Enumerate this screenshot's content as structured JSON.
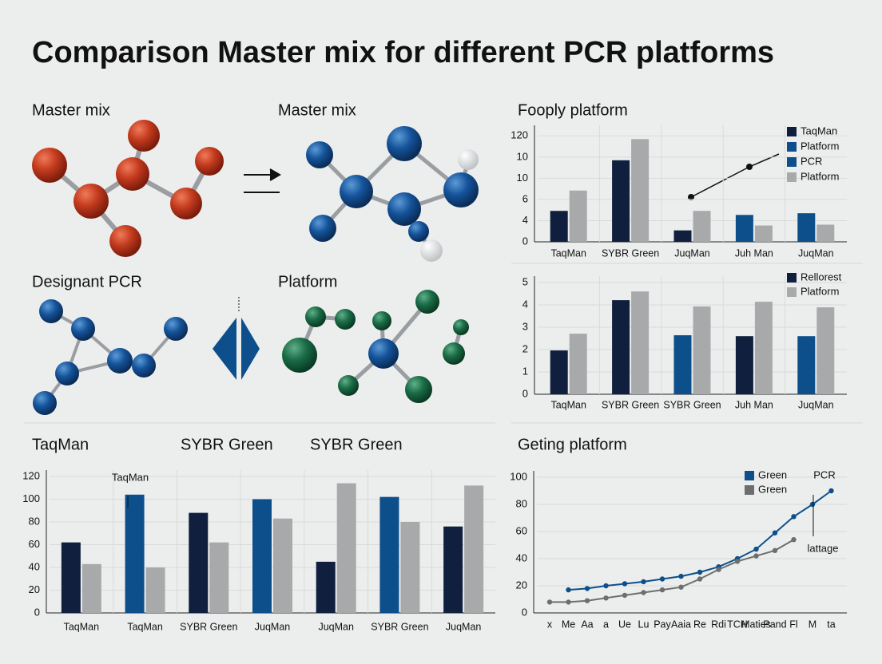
{
  "title": "Comparison  Master mix for different PCR platforms",
  "panel_labels": [
    "Master mix",
    "Master mix",
    "Designant PCR",
    "Platform",
    "TaqMan",
    "SYBR Green",
    "SYBR Green"
  ],
  "chart_data": [
    {
      "type": "bar",
      "title": "Fooply platform",
      "categories": [
        "TaqMan",
        "SYBR Green",
        "JuqMan",
        "Juh Man",
        "JuqMan"
      ],
      "series": [
        {
          "colors": [
            "#0f1f3d",
            "#0f1f3d",
            "#0f1f3d",
            "#0d4f8b",
            "#0d4f8b"
          ],
          "values": [
            1.46,
            3.85,
            0.54,
            1.27,
            1.35
          ]
        },
        {
          "color": "#a8a9ab",
          "values": [
            2.42,
            4.85,
            1.46,
            0.77,
            0.81
          ]
        }
      ],
      "legend": [
        {
          "name": "TaqMan",
          "color": "#0f1f3d"
        },
        {
          "name": "Platform",
          "color": "#0d4f8b"
        },
        {
          "name": "PCR",
          "color": "#0d4f8b"
        },
        {
          "name": "Platform",
          "color": "#a8a9ab"
        }
      ],
      "ylim": [
        0,
        5.2
      ],
      "yticks": [
        0,
        {
          "value": 1,
          "label": "4"
        },
        {
          "value": 2,
          "label": "6"
        },
        {
          "value": 3,
          "label": "10"
        },
        {
          "value": 4,
          "label": "10"
        },
        {
          "value": 5,
          "label": "120"
        }
      ],
      "grid": true
    },
    {
      "type": "bar",
      "categories": [
        "TaqMan",
        "SYBR Green",
        "SYBR Green",
        "Juh Man",
        "JuqMan"
      ],
      "series": [
        {
          "colors": [
            "#0f1f3d",
            "#0f1f3d",
            "#0d4f8b",
            "#0f1f3d",
            "#0d4f8b"
          ],
          "values": [
            1.96,
            4.21,
            2.64,
            2.6,
            2.6
          ]
        },
        {
          "color": "#a8a9ab",
          "values": [
            2.71,
            4.6,
            3.93,
            4.14,
            3.89
          ]
        }
      ],
      "legend": [
        {
          "name": "Rellorest",
          "color": "#0f1f3d"
        },
        {
          "name": "Platform",
          "color": "#a8a9ab"
        }
      ],
      "ylim": [
        0,
        5
      ],
      "yticks": [
        0,
        1,
        2,
        3,
        4,
        5
      ],
      "grid": true
    },
    {
      "type": "bar",
      "categories": [
        "TaqMan",
        "TaqMan",
        "SYBR Green",
        "JuqMan",
        "JuqMan",
        "SYBR Green",
        "JuqMan"
      ],
      "series": [
        {
          "colors": [
            "#0f1f3d",
            "#0d4f8b",
            "#0f1f3d",
            "#0d4f8b",
            "#0f1f3d",
            "#0d4f8b",
            "#0f1f3d"
          ],
          "values": [
            62,
            104,
            88,
            100,
            45,
            102,
            76
          ]
        },
        {
          "color": "#a8a9ab",
          "values": [
            43,
            40,
            62,
            83,
            114,
            80,
            112
          ]
        }
      ],
      "annotations": [
        "TaqMan"
      ],
      "ylim": [
        0,
        120
      ],
      "yticks": [
        0,
        20,
        40,
        60,
        80,
        100,
        120
      ],
      "grid": true
    },
    {
      "type": "line",
      "title": "Geting platform",
      "categories": [
        "x",
        "Me",
        "Aa",
        "a",
        "Ue",
        "Lu",
        "Pay",
        "Aaia",
        "Re",
        "Rdi",
        "TCH",
        "Maties",
        "Pand",
        "Fl",
        "M",
        "ta"
      ],
      "series": [
        {
          "name": "Green",
          "color": "#0d4f8b",
          "values": [
            null,
            17,
            18,
            20,
            21.5,
            23,
            25,
            27,
            30,
            34,
            40,
            47,
            59,
            71,
            80,
            90
          ]
        },
        {
          "name": "Green",
          "color": "#6e6e70",
          "values": [
            8,
            8,
            9,
            11,
            13,
            15,
            17,
            19,
            25,
            32,
            38,
            42,
            46,
            54,
            null,
            null
          ]
        }
      ],
      "annotations": [
        "PCR",
        "lattage"
      ],
      "ylim": [
        0,
        100
      ],
      "yticks": [
        0,
        20,
        40,
        60,
        80,
        100
      ],
      "grid": true
    }
  ]
}
